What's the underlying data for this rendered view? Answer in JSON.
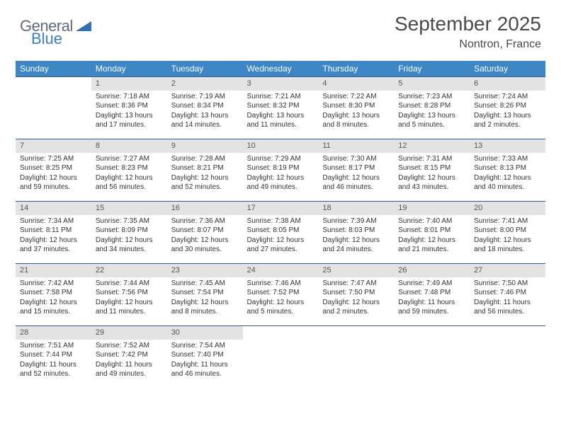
{
  "logo": {
    "general": "General",
    "blue": "Blue"
  },
  "title": "September 2025",
  "subtitle": "Nontron, France",
  "colors": {
    "header_bg": "#3d87c7",
    "header_text": "#ffffff",
    "daynum_bg": "#e3e3e3",
    "row_border": "#2f5e8e",
    "title_color": "#4a4a4a",
    "logo_general": "#5f6b76",
    "logo_blue": "#3a7fc4"
  },
  "day_headers": [
    "Sunday",
    "Monday",
    "Tuesday",
    "Wednesday",
    "Thursday",
    "Friday",
    "Saturday"
  ],
  "weeks": [
    [
      {
        "n": "",
        "sr": "",
        "ss": "",
        "dl": ""
      },
      {
        "n": "1",
        "sr": "Sunrise: 7:18 AM",
        "ss": "Sunset: 8:36 PM",
        "dl": "Daylight: 13 hours and 17 minutes."
      },
      {
        "n": "2",
        "sr": "Sunrise: 7:19 AM",
        "ss": "Sunset: 8:34 PM",
        "dl": "Daylight: 13 hours and 14 minutes."
      },
      {
        "n": "3",
        "sr": "Sunrise: 7:21 AM",
        "ss": "Sunset: 8:32 PM",
        "dl": "Daylight: 13 hours and 11 minutes."
      },
      {
        "n": "4",
        "sr": "Sunrise: 7:22 AM",
        "ss": "Sunset: 8:30 PM",
        "dl": "Daylight: 13 hours and 8 minutes."
      },
      {
        "n": "5",
        "sr": "Sunrise: 7:23 AM",
        "ss": "Sunset: 8:28 PM",
        "dl": "Daylight: 13 hours and 5 minutes."
      },
      {
        "n": "6",
        "sr": "Sunrise: 7:24 AM",
        "ss": "Sunset: 8:26 PM",
        "dl": "Daylight: 13 hours and 2 minutes."
      }
    ],
    [
      {
        "n": "7",
        "sr": "Sunrise: 7:25 AM",
        "ss": "Sunset: 8:25 PM",
        "dl": "Daylight: 12 hours and 59 minutes."
      },
      {
        "n": "8",
        "sr": "Sunrise: 7:27 AM",
        "ss": "Sunset: 8:23 PM",
        "dl": "Daylight: 12 hours and 56 minutes."
      },
      {
        "n": "9",
        "sr": "Sunrise: 7:28 AM",
        "ss": "Sunset: 8:21 PM",
        "dl": "Daylight: 12 hours and 52 minutes."
      },
      {
        "n": "10",
        "sr": "Sunrise: 7:29 AM",
        "ss": "Sunset: 8:19 PM",
        "dl": "Daylight: 12 hours and 49 minutes."
      },
      {
        "n": "11",
        "sr": "Sunrise: 7:30 AM",
        "ss": "Sunset: 8:17 PM",
        "dl": "Daylight: 12 hours and 46 minutes."
      },
      {
        "n": "12",
        "sr": "Sunrise: 7:31 AM",
        "ss": "Sunset: 8:15 PM",
        "dl": "Daylight: 12 hours and 43 minutes."
      },
      {
        "n": "13",
        "sr": "Sunrise: 7:33 AM",
        "ss": "Sunset: 8:13 PM",
        "dl": "Daylight: 12 hours and 40 minutes."
      }
    ],
    [
      {
        "n": "14",
        "sr": "Sunrise: 7:34 AM",
        "ss": "Sunset: 8:11 PM",
        "dl": "Daylight: 12 hours and 37 minutes."
      },
      {
        "n": "15",
        "sr": "Sunrise: 7:35 AM",
        "ss": "Sunset: 8:09 PM",
        "dl": "Daylight: 12 hours and 34 minutes."
      },
      {
        "n": "16",
        "sr": "Sunrise: 7:36 AM",
        "ss": "Sunset: 8:07 PM",
        "dl": "Daylight: 12 hours and 30 minutes."
      },
      {
        "n": "17",
        "sr": "Sunrise: 7:38 AM",
        "ss": "Sunset: 8:05 PM",
        "dl": "Daylight: 12 hours and 27 minutes."
      },
      {
        "n": "18",
        "sr": "Sunrise: 7:39 AM",
        "ss": "Sunset: 8:03 PM",
        "dl": "Daylight: 12 hours and 24 minutes."
      },
      {
        "n": "19",
        "sr": "Sunrise: 7:40 AM",
        "ss": "Sunset: 8:01 PM",
        "dl": "Daylight: 12 hours and 21 minutes."
      },
      {
        "n": "20",
        "sr": "Sunrise: 7:41 AM",
        "ss": "Sunset: 8:00 PM",
        "dl": "Daylight: 12 hours and 18 minutes."
      }
    ],
    [
      {
        "n": "21",
        "sr": "Sunrise: 7:42 AM",
        "ss": "Sunset: 7:58 PM",
        "dl": "Daylight: 12 hours and 15 minutes."
      },
      {
        "n": "22",
        "sr": "Sunrise: 7:44 AM",
        "ss": "Sunset: 7:56 PM",
        "dl": "Daylight: 12 hours and 11 minutes."
      },
      {
        "n": "23",
        "sr": "Sunrise: 7:45 AM",
        "ss": "Sunset: 7:54 PM",
        "dl": "Daylight: 12 hours and 8 minutes."
      },
      {
        "n": "24",
        "sr": "Sunrise: 7:46 AM",
        "ss": "Sunset: 7:52 PM",
        "dl": "Daylight: 12 hours and 5 minutes."
      },
      {
        "n": "25",
        "sr": "Sunrise: 7:47 AM",
        "ss": "Sunset: 7:50 PM",
        "dl": "Daylight: 12 hours and 2 minutes."
      },
      {
        "n": "26",
        "sr": "Sunrise: 7:49 AM",
        "ss": "Sunset: 7:48 PM",
        "dl": "Daylight: 11 hours and 59 minutes."
      },
      {
        "n": "27",
        "sr": "Sunrise: 7:50 AM",
        "ss": "Sunset: 7:46 PM",
        "dl": "Daylight: 11 hours and 56 minutes."
      }
    ],
    [
      {
        "n": "28",
        "sr": "Sunrise: 7:51 AM",
        "ss": "Sunset: 7:44 PM",
        "dl": "Daylight: 11 hours and 52 minutes."
      },
      {
        "n": "29",
        "sr": "Sunrise: 7:52 AM",
        "ss": "Sunset: 7:42 PM",
        "dl": "Daylight: 11 hours and 49 minutes."
      },
      {
        "n": "30",
        "sr": "Sunrise: 7:54 AM",
        "ss": "Sunset: 7:40 PM",
        "dl": "Daylight: 11 hours and 46 minutes."
      },
      {
        "n": "",
        "sr": "",
        "ss": "",
        "dl": ""
      },
      {
        "n": "",
        "sr": "",
        "ss": "",
        "dl": ""
      },
      {
        "n": "",
        "sr": "",
        "ss": "",
        "dl": ""
      },
      {
        "n": "",
        "sr": "",
        "ss": "",
        "dl": ""
      }
    ]
  ]
}
